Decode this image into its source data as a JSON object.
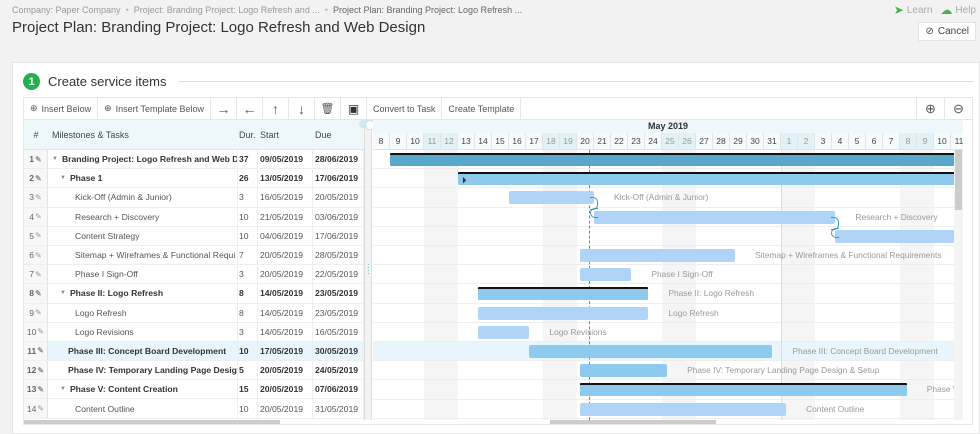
{
  "breadcrumb": [
    "Company: Paper Company",
    "Project: Branding Project: Logo Refresh and ...",
    "Project Plan: Branding Project: Logo Refresh ..."
  ],
  "page_title": "Project Plan: Branding Project: Logo Refresh and Web Design",
  "top_links": {
    "learn": "Learn",
    "help": "Help"
  },
  "cancel_label": "Cancel",
  "section": {
    "step": "1",
    "title": "Create service items"
  },
  "toolbar": {
    "insert_below": "Insert Below",
    "insert_template_below": "Insert Template Below",
    "indent": "→",
    "outdent": "←",
    "move_up": "↑",
    "move_down": "↓",
    "delete": "🗑",
    "pdf": "▣",
    "convert_to_task": "Convert to Task",
    "create_template": "Create Template",
    "zoom_in": "⊕",
    "zoom_out": "⊖"
  },
  "grid": {
    "headers": {
      "num": "#",
      "name": "Milestones & Tasks",
      "dur": "Dur.",
      "start": "Start",
      "due": "Due"
    },
    "rows": [
      {
        "num": "1",
        "name": "Branding Project: Logo Refresh and Web Des",
        "dur": "37",
        "start": "09/05/2019",
        "due": "28/06/2019",
        "bold": true,
        "indent": 0,
        "caret": true
      },
      {
        "num": "2",
        "name": "Phase 1",
        "dur": "26",
        "start": "13/05/2019",
        "due": "17/06/2019",
        "bold": true,
        "indent": 1,
        "caret": true
      },
      {
        "num": "3",
        "name": "Kick-Off (Admin & Junior)",
        "dur": "3",
        "start": "16/05/2019",
        "due": "20/05/2019",
        "bold": false,
        "indent": 2
      },
      {
        "num": "4",
        "name": "Research + Discovery",
        "dur": "10",
        "start": "21/05/2019",
        "due": "03/06/2019",
        "bold": false,
        "indent": 2
      },
      {
        "num": "5",
        "name": "Content Strategy",
        "dur": "10",
        "start": "04/06/2019",
        "due": "17/06/2019",
        "bold": false,
        "indent": 2
      },
      {
        "num": "6",
        "name": "Sitemap + Wireframes & Functional Requi",
        "dur": "7",
        "start": "20/05/2019",
        "due": "28/05/2019",
        "bold": false,
        "indent": 2
      },
      {
        "num": "7",
        "name": "Phase I Sign-Off",
        "dur": "3",
        "start": "20/05/2019",
        "due": "22/05/2019",
        "bold": false,
        "indent": 2
      },
      {
        "num": "8",
        "name": "Phase II: Logo Refresh",
        "dur": "8",
        "start": "14/05/2019",
        "due": "23/05/2019",
        "bold": true,
        "indent": 1,
        "caret": true
      },
      {
        "num": "9",
        "name": "Logo Refresh",
        "dur": "8",
        "start": "14/05/2019",
        "due": "23/05/2019",
        "bold": false,
        "indent": 2
      },
      {
        "num": "10",
        "name": "Logo Revisions",
        "dur": "3",
        "start": "14/05/2019",
        "due": "16/05/2019",
        "bold": false,
        "indent": 2
      },
      {
        "num": "11",
        "name": "Phase III: Concept Board Development",
        "dur": "10",
        "start": "17/05/2019",
        "due": "30/05/2019",
        "bold": true,
        "indent": 1,
        "selected": true
      },
      {
        "num": "12",
        "name": "Phase IV: Temporary Landing Page Design",
        "dur": "5",
        "start": "20/05/2019",
        "due": "24/05/2019",
        "bold": true,
        "indent": 1
      },
      {
        "num": "13",
        "name": "Phase V: Content Creation",
        "dur": "15",
        "start": "20/05/2019",
        "due": "07/06/2019",
        "bold": true,
        "indent": 1,
        "caret": true
      },
      {
        "num": "14",
        "name": "Content Outline",
        "dur": "10",
        "start": "20/05/2019",
        "due": "31/05/2019",
        "bold": false,
        "indent": 2
      }
    ]
  },
  "gantt": {
    "month_label": "May 2019",
    "days": [
      "8",
      "9",
      "10",
      "11",
      "12",
      "13",
      "14",
      "15",
      "16",
      "17",
      "18",
      "19",
      "20",
      "21",
      "22",
      "23",
      "24",
      "25",
      "26",
      "27",
      "28",
      "29",
      "30",
      "31",
      "1",
      "2",
      "3",
      "4",
      "5",
      "6",
      "7",
      "8",
      "9",
      "10",
      "11"
    ],
    "weekend_idx": [
      3,
      4,
      10,
      11,
      17,
      18,
      24,
      25,
      31,
      32
    ],
    "today_idx": 12.7,
    "bars": [
      {
        "row": 0,
        "type": "project",
        "start": 1,
        "end": 36,
        "label": ""
      },
      {
        "row": 1,
        "type": "summary",
        "start": 5,
        "end": 36,
        "label": "",
        "play": true
      },
      {
        "row": 2,
        "type": "task",
        "start": 8,
        "end": 13,
        "label": "Kick-Off (Admin & Junior)"
      },
      {
        "row": 3,
        "type": "task",
        "start": 13,
        "end": 27.2,
        "label": "Research + Discovery"
      },
      {
        "row": 4,
        "type": "task",
        "start": 27.2,
        "end": 36,
        "label": ""
      },
      {
        "row": 5,
        "type": "task",
        "start": 12.2,
        "end": 21.3,
        "label": "Sitemap + Wireframes & Functional Requirements"
      },
      {
        "row": 6,
        "type": "task",
        "start": 12.2,
        "end": 15.2,
        "label": "Phase I Sign-Off"
      },
      {
        "row": 7,
        "type": "summary",
        "start": 6.2,
        "end": 16.2,
        "label": "Phase II: Logo Refresh"
      },
      {
        "row": 8,
        "type": "task",
        "start": 6.2,
        "end": 16.2,
        "label": "Logo Refresh"
      },
      {
        "row": 9,
        "type": "task",
        "start": 6.2,
        "end": 9.2,
        "label": "Logo Revisions"
      },
      {
        "row": 10,
        "type": "phase",
        "start": 9.2,
        "end": 23.5,
        "label": "Phase III: Concept Board Development"
      },
      {
        "row": 11,
        "type": "phase",
        "start": 12.2,
        "end": 17.3,
        "label": "Phase IV: Temporary Landing Page Design & Setup"
      },
      {
        "row": 12,
        "type": "summary",
        "start": 12.2,
        "end": 31.4,
        "label": "Phase V:"
      },
      {
        "row": 13,
        "type": "task",
        "start": 12.2,
        "end": 24.3,
        "label": "Content Outline"
      }
    ]
  },
  "colors": {
    "accent_green": "#22b14c",
    "project_bar": "#5aa7cc",
    "summary_bar": "#8ec9ee",
    "task_bar": "#b0d4f8",
    "today_line": "#e05555",
    "dependency": "#3a95c5"
  }
}
